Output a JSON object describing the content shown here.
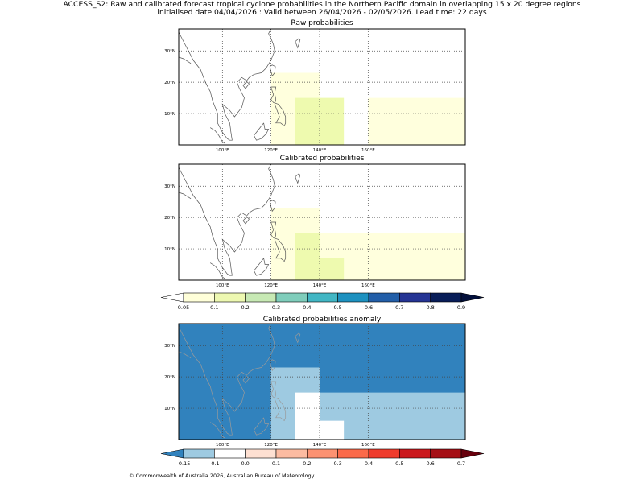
{
  "header": {
    "line1": "ACCESS_S2: Raw and calibrated forecast tropical cyclone probabilities in the Northern Pacific domain in overlapping 15 x 20 degree regions",
    "line2": "initialised date 04/04/2026 :  Valid between 26/04/2026 - 02/05/2026. Lead time: 22 days"
  },
  "axes": {
    "lat_labels": [
      "30°N",
      "20°N",
      "10°N"
    ],
    "lon_labels": [
      "100°E",
      "120°E",
      "140°E",
      "160°E"
    ],
    "lon_values": [
      100,
      120,
      140,
      160
    ],
    "lat_values": [
      30,
      20,
      10
    ],
    "lon_range": [
      82,
      200
    ],
    "lat_range": [
      0,
      37
    ]
  },
  "panels": [
    {
      "title": "Raw probabilities",
      "background": "#ffffff",
      "regions": [
        {
          "lon": [
            120,
            140
          ],
          "lat": [
            0,
            23
          ],
          "color": "#ffffdd"
        },
        {
          "lon": [
            130,
            150
          ],
          "lat": [
            0,
            15
          ],
          "color": "#eefaaf"
        },
        {
          "lon": [
            160,
            200
          ],
          "lat": [
            0,
            15
          ],
          "color": "#ffffdd"
        }
      ]
    },
    {
      "title": "Calibrated probabilities",
      "background": "#ffffff",
      "regions": [
        {
          "lon": [
            120,
            140
          ],
          "lat": [
            0,
            23
          ],
          "color": "#ffffdd"
        },
        {
          "lon": [
            140,
            200
          ],
          "lat": [
            0,
            15
          ],
          "color": "#ffffdd"
        },
        {
          "lon": [
            130,
            140
          ],
          "lat": [
            0,
            15
          ],
          "color": "#eefaaf"
        },
        {
          "lon": [
            140,
            150
          ],
          "lat": [
            0,
            7
          ],
          "color": "#eefaaf"
        }
      ]
    },
    {
      "title": "Calibrated probabilities anomaly",
      "background": "#3182bd",
      "regions": [
        {
          "lon": [
            120,
            140
          ],
          "lat": [
            0,
            23
          ],
          "color": "#9ecae1"
        },
        {
          "lon": [
            140,
            200
          ],
          "lat": [
            0,
            15
          ],
          "color": "#9ecae1"
        },
        {
          "lon": [
            130,
            140
          ],
          "lat": [
            0,
            15
          ],
          "color": "#ffffff"
        },
        {
          "lon": [
            140,
            150
          ],
          "lat": [
            0,
            6
          ],
          "color": "#ffffff"
        }
      ]
    }
  ],
  "colorbar_prob": {
    "labels": [
      "0.05",
      "0.1",
      "0.2",
      "0.3",
      "0.4",
      "0.5",
      "0.6",
      "0.7",
      "0.8",
      "0.9"
    ],
    "under": "#ffffff",
    "colors": [
      "#ffffd9",
      "#edf8b1",
      "#c7e9b4",
      "#7fcdbb",
      "#41b6c4",
      "#1d91c0",
      "#225ea8",
      "#253494",
      "#081d58"
    ],
    "over": "#03103a"
  },
  "colorbar_anom": {
    "labels": [
      "-0.15",
      "-0.1",
      "0.0",
      "0.1",
      "0.2",
      "0.3",
      "0.4",
      "0.5",
      "0.6",
      "0.7"
    ],
    "under": "#3182bd",
    "colors": [
      "#9ecae1",
      "#ffffff",
      "#fee0d2",
      "#fcbba1",
      "#fc9272",
      "#fb6a4a",
      "#ef3b2c",
      "#cb181d",
      "#a50f15"
    ],
    "over": "#67000d"
  },
  "footer": "© Commonwealth of Australia 2026, Australian Bureau of Meteorology"
}
